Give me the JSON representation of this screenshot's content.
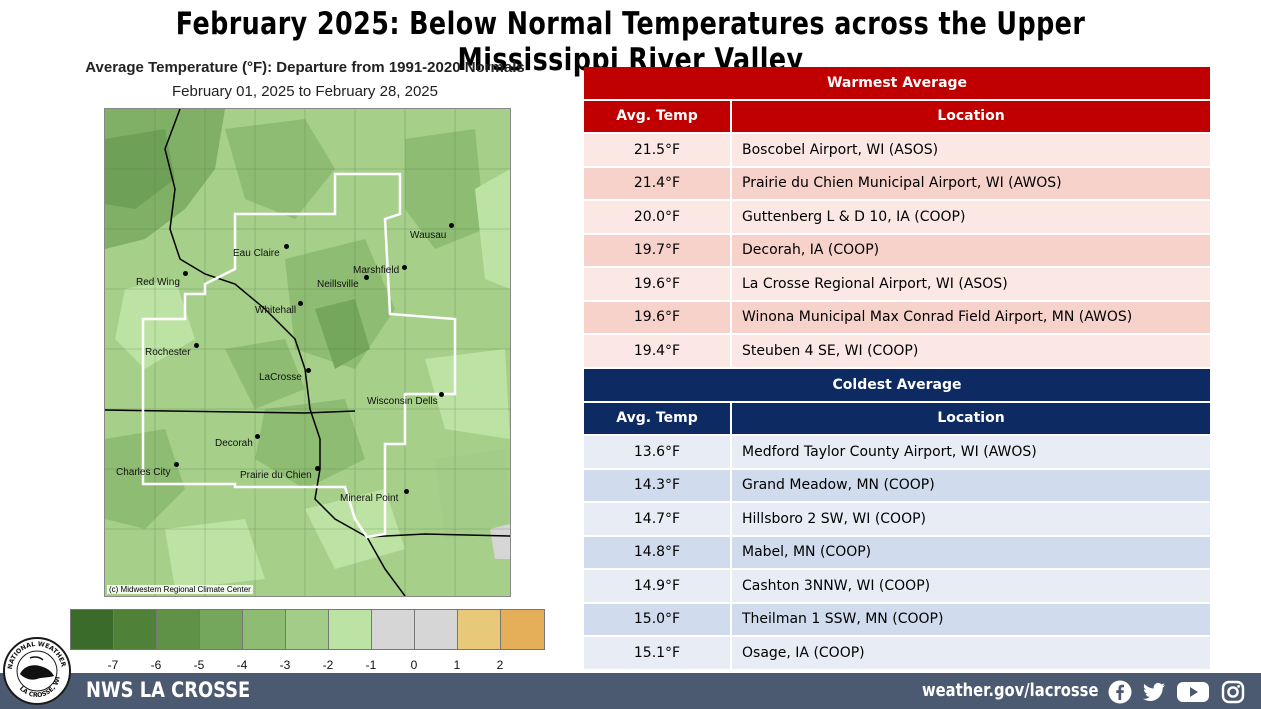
{
  "title": "February 2025:  Below Normal Temperatures across the Upper Mississippi River Valley",
  "map": {
    "title": "Average Temperature (°F): Departure from 1991-2020 Normals",
    "subtitle": "February 01, 2025 to February 28, 2025",
    "credit": "(c) Midwestern Regional Climate Center",
    "cities": [
      "Eau Claire",
      "Wausau",
      "Marshfield",
      "Red Wing",
      "Neillsville",
      "Whitehall",
      "Rochester",
      "LaCrosse",
      "Wisconsin Dells",
      "Decorah",
      "Charles City",
      "Prairie du Chien",
      "Mineral Point"
    ]
  },
  "legend": {
    "colors": [
      "#3b6b2a",
      "#4f8138",
      "#5f9247",
      "#74a75b",
      "#8ebc72",
      "#a3cc88",
      "#bde3a4",
      "#d6d6d6",
      "#d6d6d6",
      "#e8c97a",
      "#e5ae58"
    ],
    "labels": [
      "-7",
      "-6",
      "-5",
      "-4",
      "-3",
      "-2",
      "-1",
      "0",
      "1",
      "2"
    ]
  },
  "warmest": {
    "caption": "Warmest  Average",
    "col_temp": "Avg. Temp",
    "col_loc": "Location",
    "rows": [
      {
        "temp": "21.5°F",
        "loc": "Boscobel Airport, WI (ASOS)"
      },
      {
        "temp": "21.4°F",
        "loc": "Prairie du Chien Municipal Airport, WI (AWOS)"
      },
      {
        "temp": "20.0°F",
        "loc": "Guttenberg L & D 10, IA (COOP)"
      },
      {
        "temp": "19.7°F",
        "loc": "Decorah, IA (COOP)"
      },
      {
        "temp": "19.6°F",
        "loc": "La Crosse Regional Airport, WI (ASOS)"
      },
      {
        "temp": "19.6°F",
        "loc": "Winona Municipal Max Conrad Field Airport, MN (AWOS)"
      },
      {
        "temp": "19.4°F",
        "loc": "Steuben 4 SE, WI (COOP)"
      }
    ],
    "colors": {
      "header": "#c00000",
      "row_light": "#fbe8e5",
      "row_dark": "#f6d2cb"
    }
  },
  "coldest": {
    "caption": "Coldest Average",
    "col_temp": "Avg. Temp",
    "col_loc": "Location",
    "rows": [
      {
        "temp": "13.6°F",
        "loc": "Medford Taylor County Airport, WI (AWOS)"
      },
      {
        "temp": "14.3°F",
        "loc": "Grand Meadow, MN (COOP)"
      },
      {
        "temp": "14.7°F",
        "loc": "Hillsboro 2 SW, WI (COOP)"
      },
      {
        "temp": "14.8°F",
        "loc": "Mabel, MN (COOP)"
      },
      {
        "temp": "14.9°F",
        "loc": "Cashton 3NNW, WI (COOP)"
      },
      {
        "temp": "15.0°F",
        "loc": "Theilman 1 SSW, MN (COOP)"
      },
      {
        "temp": "15.1°F",
        "loc": "Osage, IA (COOP)"
      }
    ],
    "colors": {
      "header": "#0e2a63",
      "row_light": "#e8edf5",
      "row_dark": "#d0dcee"
    }
  },
  "footer": {
    "office": "NWS LA CROSSE",
    "url": "weather.gov/lacrosse",
    "logo_text": "NATIONAL WEATHER SERVICE LA CROSSE, WI",
    "social_icons": [
      "facebook-icon",
      "twitter-icon",
      "youtube-icon",
      "instagram-icon"
    ],
    "bg_color": "#4b5a70"
  }
}
